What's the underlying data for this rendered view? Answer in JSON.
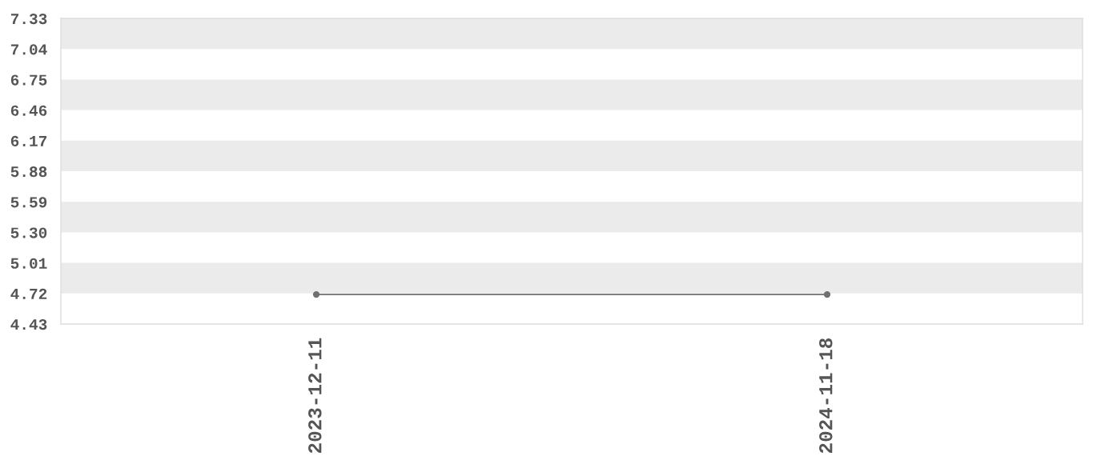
{
  "chart_data": {
    "type": "line",
    "categories": [
      "2023-12-11",
      "2024-11-18"
    ],
    "values": [
      4.71,
      4.71
    ],
    "color": "#707070",
    "ylim": [
      4.43,
      7.33
    ],
    "yticks": [
      4.43,
      4.72,
      5.01,
      {
        "value": 5.3,
        "label": "5.30"
      },
      5.59,
      5.88,
      6.17,
      6.46,
      6.75,
      7.04,
      7.33
    ],
    "bands": [
      {
        "axis": "y",
        "from": 4.72,
        "to": 5.01,
        "color": "#ebebeb"
      },
      {
        "axis": "y",
        "from": 5.3,
        "to": 5.59,
        "color": "#ebebeb"
      },
      {
        "axis": "y",
        "from": 5.88,
        "to": 6.17,
        "color": "#ebebeb"
      },
      {
        "axis": "y",
        "from": 6.46,
        "to": 6.75,
        "color": "#ebebeb"
      },
      {
        "axis": "y",
        "from": 7.04,
        "to": 7.33,
        "color": "#ebebeb"
      }
    ],
    "marker": "circle",
    "line_style": "solid"
  }
}
